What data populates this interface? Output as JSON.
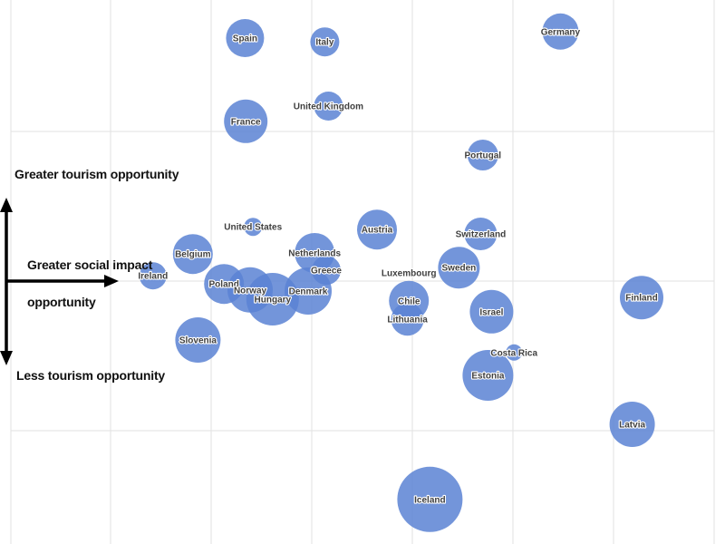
{
  "chart_data": {
    "type": "scatter",
    "title": "",
    "xlabel": "Greater social impact opportunity",
    "ylabel_top": "Greater tourism opportunity",
    "ylabel_bottom": "Less tourism opportunity",
    "grid": true,
    "axis_units": "relative (x: 0–100 left→right = increasing social impact opportunity; y: 0–100 bottom→top = increasing tourism opportunity)",
    "xlim": [
      0,
      100
    ],
    "ylim": [
      0,
      100
    ],
    "bubble_color": "#5b82d4",
    "points": [
      {
        "label": "Spain",
        "x": 33.8,
        "y": 93.0,
        "size": 21
      },
      {
        "label": "Italy",
        "x": 44.8,
        "y": 92.3,
        "size": 16
      },
      {
        "label": "Germany",
        "x": 77.3,
        "y": 94.2,
        "size": 20
      },
      {
        "label": "United Kingdom",
        "x": 45.3,
        "y": 80.5,
        "size": 16
      },
      {
        "label": "France",
        "x": 33.9,
        "y": 77.7,
        "size": 24
      },
      {
        "label": "Portugal",
        "x": 66.6,
        "y": 71.5,
        "size": 17
      },
      {
        "label": "United States",
        "x": 34.9,
        "y": 58.3,
        "size": 10
      },
      {
        "label": "Austria",
        "x": 52.0,
        "y": 57.8,
        "size": 22
      },
      {
        "label": "Switzerland",
        "x": 66.3,
        "y": 57.0,
        "size": 18
      },
      {
        "label": "Netherlands",
        "x": 43.4,
        "y": 53.5,
        "size": 22
      },
      {
        "label": "Belgium",
        "x": 26.6,
        "y": 53.3,
        "size": 22
      },
      {
        "label": "Greece",
        "x": 45.0,
        "y": 50.3,
        "size": 16
      },
      {
        "label": "Luxembourg",
        "x": 56.4,
        "y": 49.8,
        "size": 2
      },
      {
        "label": "Sweden",
        "x": 63.3,
        "y": 50.8,
        "size": 23
      },
      {
        "label": "Ireland",
        "x": 21.1,
        "y": 49.3,
        "size": 15
      },
      {
        "label": "Poland",
        "x": 30.9,
        "y": 47.8,
        "size": 22
      },
      {
        "label": "Norway",
        "x": 34.5,
        "y": 46.7,
        "size": 25
      },
      {
        "label": "Denmark",
        "x": 42.5,
        "y": 46.5,
        "size": 26
      },
      {
        "label": "Hungary",
        "x": 37.6,
        "y": 45.0,
        "size": 29
      },
      {
        "label": "Finland",
        "x": 88.5,
        "y": 45.3,
        "size": 24
      },
      {
        "label": "Chile",
        "x": 56.4,
        "y": 44.7,
        "size": 22
      },
      {
        "label": "Israel",
        "x": 67.8,
        "y": 42.7,
        "size": 24
      },
      {
        "label": "Lithuania",
        "x": 56.2,
        "y": 41.3,
        "size": 18
      },
      {
        "label": "Slovenia",
        "x": 27.3,
        "y": 37.5,
        "size": 25
      },
      {
        "label": "Costa Rica",
        "x": 70.9,
        "y": 35.2,
        "size": 9
      },
      {
        "label": "Estonia",
        "x": 67.3,
        "y": 31.0,
        "size": 28
      },
      {
        "label": "Latvia",
        "x": 87.2,
        "y": 22.0,
        "size": 25
      },
      {
        "label": "Iceland",
        "x": 59.3,
        "y": 8.2,
        "size": 36
      }
    ]
  }
}
